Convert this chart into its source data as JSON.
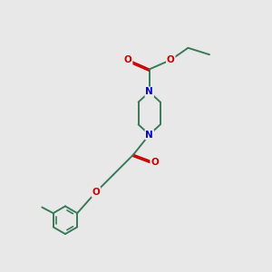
{
  "bg_color": "#e8e8e8",
  "bond_color": "#3a7a5a",
  "N_color": "#0000cc",
  "O_color": "#cc0000",
  "line_width": 1.4,
  "font_size": 7.5,
  "figsize": [
    3.0,
    3.0
  ],
  "dpi": 100,
  "xlim": [
    0,
    10
  ],
  "ylim": [
    0,
    10
  ]
}
